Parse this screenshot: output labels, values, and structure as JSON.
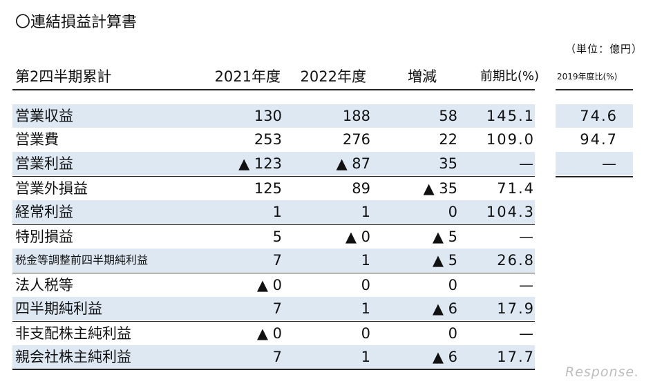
{
  "title": "〇連結損益計算書",
  "unit": "（単位：億円）",
  "headers": {
    "label": "第2四半期累計",
    "y2021": "2021年度",
    "y2022": "2022年度",
    "diff": "増減",
    "ratio": "前期比(%)",
    "ratio2019": "2019年度比(%)"
  },
  "rows": [
    {
      "label": "営業収益",
      "y2021": "130",
      "y2022": "188",
      "diff": "58",
      "ratio": "145.1"
    },
    {
      "label": "営業費",
      "y2021": "253",
      "y2022": "276",
      "diff": "22",
      "ratio": "109.0"
    },
    {
      "label": "営業利益",
      "y2021": "▲ 123",
      "y2022": "▲ 87",
      "diff": "35",
      "ratio": "—"
    },
    {
      "label": "営業外損益",
      "y2021": "125",
      "y2022": "89",
      "diff": "▲ 35",
      "ratio": "71.4"
    },
    {
      "label": "経常利益",
      "y2021": "1",
      "y2022": "1",
      "diff": "0",
      "ratio": "104.3"
    },
    {
      "label": "特別損益",
      "y2021": "5",
      "y2022": "▲ 0",
      "diff": "▲ 5",
      "ratio": "—"
    },
    {
      "label": "税金等調整前四半期純利益",
      "y2021": "7",
      "y2022": "1",
      "diff": "▲ 5",
      "ratio": "26.8"
    },
    {
      "label": "法人税等",
      "y2021": "▲ 0",
      "y2022": "0",
      "diff": "0",
      "ratio": "—"
    },
    {
      "label": "四半期純利益",
      "y2021": "7",
      "y2022": "1",
      "diff": "▲ 6",
      "ratio": "17.9"
    },
    {
      "label": "非支配株主純利益",
      "y2021": "▲ 0",
      "y2022": "0",
      "diff": "0",
      "ratio": "—"
    },
    {
      "label": "親会社株主純利益",
      "y2021": "7",
      "y2022": "1",
      "diff": "▲ 6",
      "ratio": "17.7"
    }
  ],
  "ratio2019": [
    "74.6",
    "94.7",
    "—"
  ],
  "watermark": "Response."
}
